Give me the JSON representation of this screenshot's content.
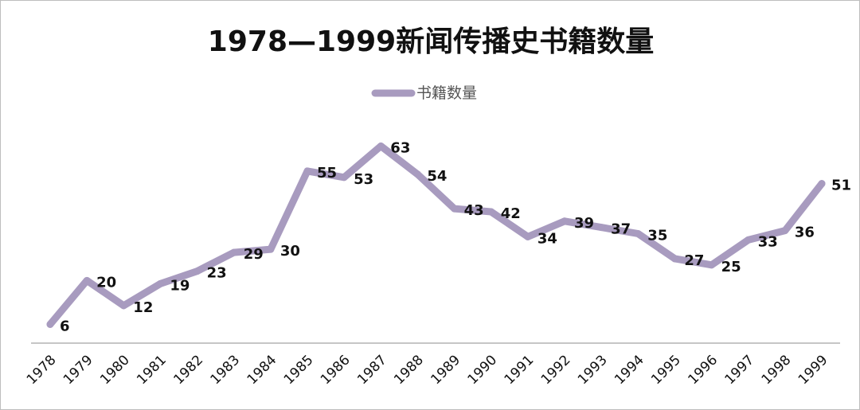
{
  "chart_data": {
    "type": "line",
    "title": "1978—1999新闻传播史书籍数量",
    "legend": [
      "书籍数量"
    ],
    "legend_position": "top",
    "categories": [
      "1978",
      "1979",
      "1980",
      "1981",
      "1982",
      "1983",
      "1984",
      "1985",
      "1986",
      "1987",
      "1988",
      "1989",
      "1990",
      "1991",
      "1992",
      "1993",
      "1994",
      "1995",
      "1996",
      "1997",
      "1998",
      "1999"
    ],
    "series": [
      {
        "name": "书籍数量",
        "values": [
          6,
          20,
          12,
          19,
          23,
          29,
          30,
          55,
          53,
          63,
          54,
          43,
          42,
          34,
          39,
          37,
          35,
          27,
          25,
          33,
          36,
          51
        ],
        "color": "#a89bbf"
      }
    ],
    "xlabel": "",
    "ylabel": "",
    "ylim": [
      0,
      70
    ],
    "grid": false
  }
}
